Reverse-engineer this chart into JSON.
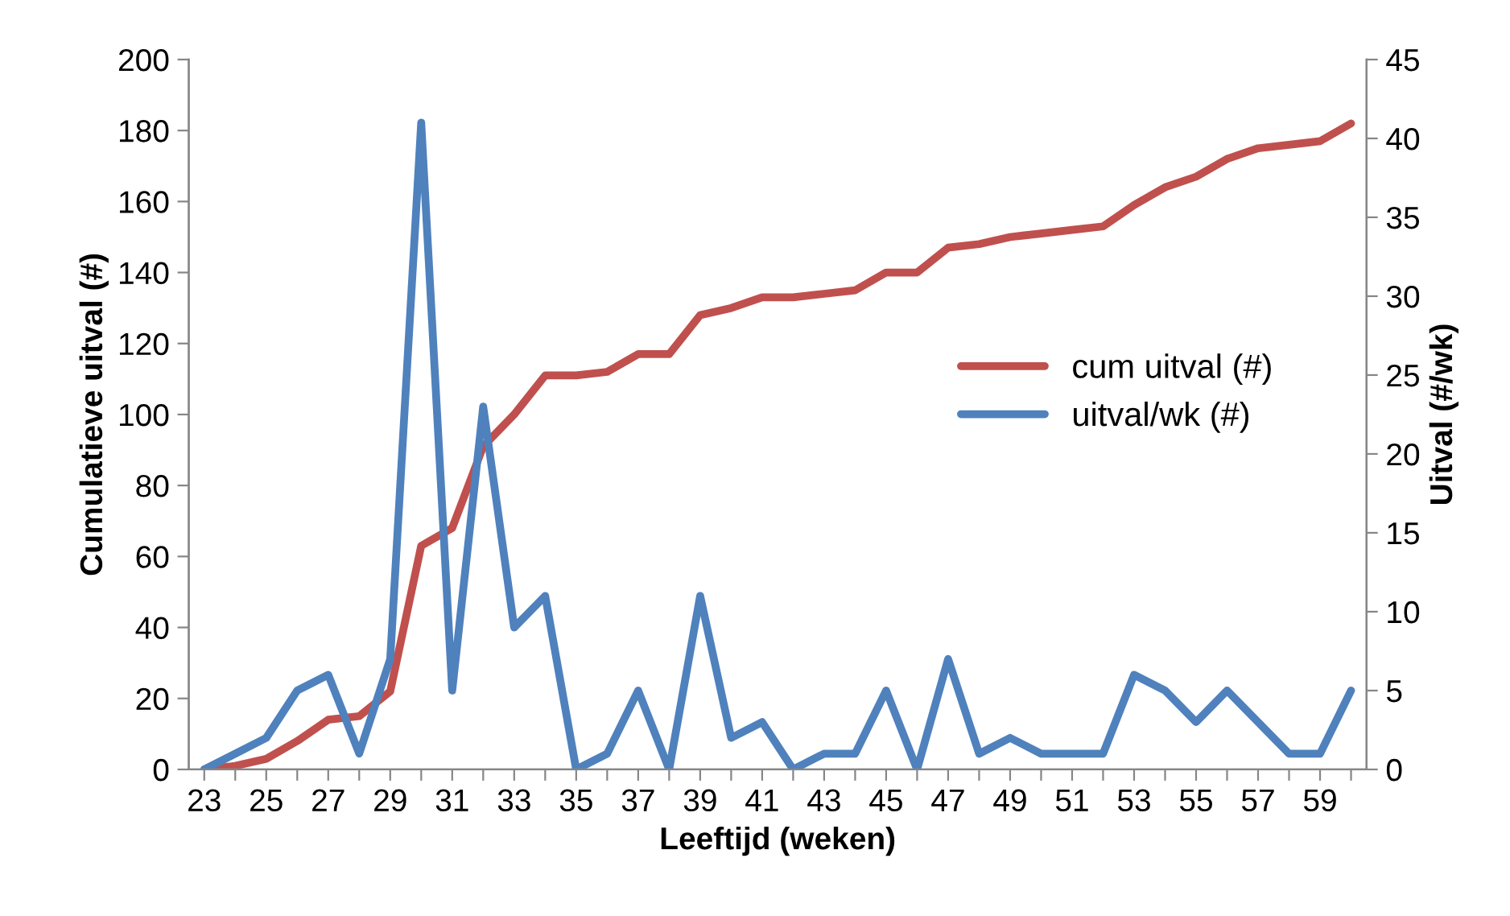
{
  "chart_data": {
    "type": "line",
    "xlabel": "Leeftijd (weken)",
    "ylabel": "Cumulatieve uitval (#)",
    "y2label": "Uitval (#/wk)",
    "categories": [
      "23",
      null,
      "25",
      null,
      "27",
      null,
      "29",
      null,
      "31",
      null,
      "33",
      null,
      "35",
      null,
      "37",
      null,
      "39",
      null,
      "41",
      null,
      "43",
      null,
      "45",
      null,
      "47",
      null,
      "49",
      null,
      "51",
      null,
      "53",
      null,
      "55",
      null,
      "57",
      null,
      "59",
      null
    ],
    "series": [
      {
        "name": "cum uitval (#)",
        "color": "#c0504d",
        "values": [
          0,
          1,
          3,
          8,
          14,
          15,
          22,
          63,
          68,
          91,
          100,
          111,
          111,
          112,
          117,
          117,
          128,
          130,
          133,
          133,
          134,
          135,
          140,
          140,
          147,
          148,
          150,
          151,
          152,
          153,
          159,
          164,
          167,
          172,
          175,
          176,
          177,
          182
        ]
      },
      {
        "name": "uitval/wk (#)",
        "color": "#4f81bd",
        "axis": "y2",
        "values": [
          0,
          1,
          2,
          5,
          6,
          1,
          7,
          41,
          5,
          23,
          9,
          11,
          0,
          1,
          5,
          0,
          11,
          2,
          3,
          0,
          1,
          1,
          5,
          0,
          7,
          1,
          2,
          1,
          1,
          1,
          6,
          5,
          3,
          5,
          3,
          1,
          1,
          5
        ]
      }
    ],
    "ylim": [
      0,
      200
    ],
    "yticks": [
      0,
      20,
      40,
      60,
      80,
      100,
      120,
      140,
      160,
      180,
      200
    ],
    "y2lim": [
      0,
      45
    ],
    "y2ticks": [
      0,
      5,
      10,
      15,
      20,
      25,
      30,
      35,
      40,
      45
    ],
    "grid": false,
    "legend": "right",
    "marker": "none",
    "line_style": "solid"
  }
}
